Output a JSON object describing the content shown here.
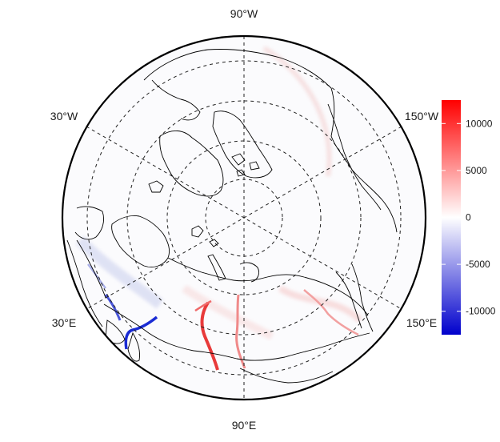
{
  "map": {
    "projection": "polar-stereographic-north",
    "graticule_style": "dashed",
    "coastline_color": "#000000",
    "longitude_labels": [
      {
        "id": "lon-90w-top",
        "text": "90°W"
      },
      {
        "id": "lon-30w",
        "text": "30°W"
      },
      {
        "id": "lon-150w",
        "text": "150°W"
      },
      {
        "id": "lon-30e",
        "text": "30°E"
      },
      {
        "id": "lon-150e",
        "text": "150°E"
      },
      {
        "id": "lon-90e-bottom",
        "text": "90°E"
      }
    ]
  },
  "colorbar": {
    "colors": {
      "low": "#0000cc",
      "mid": "#ffffff",
      "high": "#ff0000"
    },
    "range": [
      -12500,
      12500
    ],
    "ticks": [
      {
        "value": 10000,
        "label": "10000"
      },
      {
        "value": 5000,
        "label": "5000"
      },
      {
        "value": 0,
        "label": "0"
      },
      {
        "value": -5000,
        "label": "-5000"
      },
      {
        "value": -10000,
        "label": "-10000"
      }
    ]
  }
}
